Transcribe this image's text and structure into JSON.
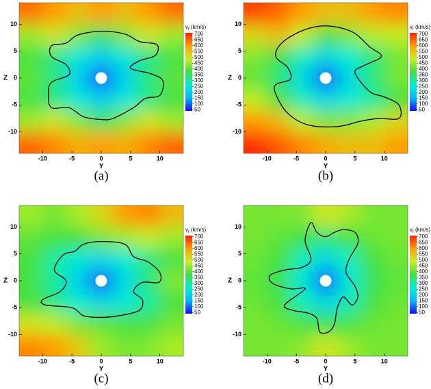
{
  "chart_data": [
    {
      "type": "heatmap",
      "caption": "(a)",
      "xlabel": "Y",
      "ylabel": "Z",
      "xlim": [
        -14,
        14
      ],
      "ylim": [
        -14,
        14
      ],
      "xticks": [
        -10,
        -5,
        0,
        5,
        10
      ],
      "yticks": [
        -10,
        -5,
        0,
        5,
        10
      ],
      "x": [
        -12,
        -8,
        -4,
        0,
        4,
        8,
        12
      ],
      "y": [
        12,
        8,
        4,
        0,
        -4,
        -8,
        -12
      ],
      "z": [
        [
          640,
          600,
          560,
          600,
          560,
          600,
          640
        ],
        [
          450,
          500,
          430,
          350,
          430,
          500,
          450
        ],
        [
          380,
          320,
          250,
          200,
          250,
          320,
          380
        ],
        [
          400,
          330,
          200,
          80,
          200,
          330,
          400
        ],
        [
          380,
          320,
          250,
          200,
          250,
          320,
          380
        ],
        [
          450,
          500,
          430,
          350,
          430,
          500,
          450
        ],
        [
          650,
          620,
          580,
          600,
          580,
          620,
          650
        ]
      ],
      "clim": [
        40,
        710
      ],
      "colorbar_ticks": [
        50,
        100,
        150,
        200,
        250,
        300,
        350,
        400,
        450,
        500,
        550,
        600,
        650,
        700
      ],
      "colorbar_label": {
        "symbol": "v",
        "subscript": "r",
        "unit": "(km/s)"
      },
      "colormap": [
        "#1010ff",
        "#00b8ff",
        "#00f0d0",
        "#40e040",
        "#c8f020",
        "#ffa000",
        "#ff2000"
      ],
      "contour": {
        "x": [
          0,
          4,
          6.5,
          9.5,
          9.2,
          6.5,
          5,
          8.5,
          10.5,
          10,
          7.5,
          5.5,
          2,
          0,
          -3,
          -5.5,
          -8.5,
          -9,
          -8.5,
          -5.5,
          -6,
          -8.5,
          -8.5,
          -6,
          -4
        ],
        "y": [
          8.7,
          8.2,
          6.8,
          6.2,
          4.2,
          3.2,
          1.8,
          0.8,
          -0.5,
          -3.2,
          -3.8,
          -5.5,
          -7.5,
          -7.7,
          -7.2,
          -5.5,
          -5.5,
          -3,
          -0.8,
          0.6,
          2.5,
          4,
          6,
          6.5,
          8
        ]
      }
    },
    {
      "type": "heatmap",
      "caption": "(b)",
      "xlabel": "Y",
      "ylabel": "Z",
      "xlim": [
        -14,
        14
      ],
      "ylim": [
        -14,
        14
      ],
      "xticks": [
        -10,
        -5,
        0,
        5,
        10
      ],
      "yticks": [
        -10,
        -5,
        0,
        5,
        10
      ],
      "x": [
        -12,
        -8,
        -4,
        0,
        4,
        8,
        12
      ],
      "y": [
        12,
        8,
        4,
        0,
        -4,
        -8,
        -12
      ],
      "z": [
        [
          680,
          650,
          600,
          560,
          560,
          600,
          620
        ],
        [
          520,
          560,
          480,
          380,
          430,
          470,
          480
        ],
        [
          430,
          370,
          280,
          220,
          260,
          330,
          420
        ],
        [
          400,
          330,
          220,
          80,
          220,
          330,
          420
        ],
        [
          480,
          380,
          280,
          220,
          250,
          300,
          380
        ],
        [
          600,
          560,
          470,
          420,
          430,
          460,
          520
        ],
        [
          700,
          660,
          620,
          580,
          560,
          560,
          600
        ]
      ],
      "clim": [
        40,
        710
      ],
      "colorbar_ticks": [
        50,
        100,
        150,
        200,
        250,
        300,
        350,
        400,
        450,
        500,
        550,
        600,
        650,
        700
      ],
      "colorbar_label": {
        "symbol": "v",
        "subscript": "r",
        "unit": "(km/s)"
      },
      "colormap": [
        "#1010ff",
        "#00b8ff",
        "#00f0d0",
        "#40e040",
        "#c8f020",
        "#ffa000",
        "#ff2000"
      ],
      "contour": {
        "x": [
          0,
          4.5,
          7.5,
          9.5,
          6.5,
          5,
          7.5,
          10,
          12.5,
          12.5,
          9,
          6,
          2,
          -3,
          -6.5,
          -8.5,
          -8.5,
          -6,
          -6.5,
          -8.5,
          -7.5,
          -4
        ],
        "y": [
          9.7,
          8.6,
          5.8,
          4,
          2.3,
          1,
          -2.5,
          -3.5,
          -5,
          -7.5,
          -7.5,
          -8,
          -9,
          -8.7,
          -6.5,
          -3,
          -1.2,
          -0.2,
          2,
          4,
          6.5,
          8.8
        ]
      }
    },
    {
      "type": "heatmap",
      "caption": "(c)",
      "xlabel": "Y",
      "ylabel": "Z",
      "xlim": [
        -14,
        14
      ],
      "ylim": [
        -14,
        14
      ],
      "xticks": [
        -10,
        -5,
        0,
        5,
        10
      ],
      "yticks": [
        -10,
        -5,
        0,
        5,
        10
      ],
      "x": [
        -12,
        -8,
        -4,
        0,
        4,
        8,
        12
      ],
      "y": [
        12,
        8,
        4,
        0,
        -4,
        -8,
        -12
      ],
      "z": [
        [
          450,
          420,
          460,
          520,
          600,
          620,
          560
        ],
        [
          400,
          380,
          380,
          420,
          450,
          480,
          450
        ],
        [
          380,
          300,
          250,
          220,
          260,
          320,
          380
        ],
        [
          380,
          300,
          200,
          80,
          220,
          330,
          430
        ],
        [
          380,
          320,
          260,
          220,
          250,
          300,
          380
        ],
        [
          500,
          480,
          420,
          400,
          380,
          380,
          420
        ],
        [
          620,
          600,
          540,
          450,
          420,
          430,
          460
        ]
      ],
      "clim": [
        40,
        710
      ],
      "colorbar_ticks": [
        50,
        100,
        150,
        200,
        250,
        300,
        350,
        400,
        450,
        500,
        550,
        600,
        650,
        700
      ],
      "colorbar_label": {
        "symbol": "v",
        "subscript": "r",
        "unit": "(km/s)"
      },
      "colormap": [
        "#1010ff",
        "#00b8ff",
        "#00f0d0",
        "#40e040",
        "#c8f020",
        "#ffa000",
        "#ff2000"
      ],
      "contour": {
        "x": [
          0,
          4,
          5.5,
          8,
          10,
          9.8,
          7,
          5.5,
          7,
          6.5,
          3,
          0,
          -3,
          -5,
          -9.5,
          -10,
          -7,
          -6,
          -8,
          -6.5,
          -4.5,
          -3
        ],
        "y": [
          7.3,
          6.8,
          4.5,
          3.5,
          1.5,
          -0.3,
          -0.3,
          -2,
          -3.5,
          -5.5,
          -6.5,
          -6.8,
          -6.5,
          -5,
          -4.5,
          -3.5,
          -2,
          0,
          2,
          4.8,
          5.5,
          6.8
        ]
      }
    },
    {
      "type": "heatmap",
      "caption": "(d)",
      "xlabel": "Y",
      "ylabel": "Z",
      "xlim": [
        -14,
        14
      ],
      "ylim": [
        -14,
        14
      ],
      "xticks": [
        -10,
        -5,
        0,
        5,
        10
      ],
      "yticks": [
        -10,
        -5,
        0,
        5,
        10
      ],
      "x": [
        -12,
        -8,
        -4,
        0,
        4,
        8,
        12
      ],
      "y": [
        12,
        8,
        4,
        0,
        -4,
        -8,
        -12
      ],
      "z": [
        [
          420,
          420,
          430,
          500,
          460,
          420,
          420
        ],
        [
          420,
          400,
          370,
          330,
          380,
          410,
          420
        ],
        [
          410,
          380,
          280,
          220,
          280,
          380,
          410
        ],
        [
          400,
          360,
          250,
          80,
          250,
          360,
          400
        ],
        [
          410,
          380,
          280,
          220,
          280,
          380,
          410
        ],
        [
          420,
          410,
          380,
          360,
          380,
          410,
          420
        ],
        [
          420,
          420,
          440,
          500,
          450,
          420,
          420
        ]
      ],
      "clim": [
        40,
        710
      ],
      "colorbar_ticks": [
        50,
        100,
        150,
        200,
        250,
        300,
        350,
        400,
        450,
        500,
        550,
        600,
        650,
        700
      ],
      "colorbar_label": {
        "symbol": "v",
        "subscript": "r",
        "unit": "(km/s)"
      },
      "colormap": [
        "#1010ff",
        "#00b8ff",
        "#00f0d0",
        "#40e040",
        "#c8f020",
        "#ffa000",
        "#ff2000"
      ],
      "contour": {
        "x": [
          -2.5,
          -1.5,
          0,
          1.5,
          3,
          5,
          5.5,
          4,
          3.5,
          5,
          5.5,
          4.5,
          3,
          2,
          1.5,
          0.5,
          -1,
          -1.5,
          -3,
          -5.5,
          -7,
          -3.5,
          -6,
          -9,
          -9.5,
          -7,
          -4,
          -2.5,
          -3.5
        ],
        "y": [
          10.8,
          9,
          8.2,
          9,
          9.5,
          9,
          7,
          4,
          1.5,
          -1,
          -3,
          -4.5,
          -3,
          -5,
          -8,
          -9.5,
          -9.5,
          -7,
          -6,
          -5.5,
          -4.5,
          -1.5,
          -1.5,
          -0.5,
          1,
          2,
          2.5,
          4,
          7.5
        ]
      }
    }
  ]
}
